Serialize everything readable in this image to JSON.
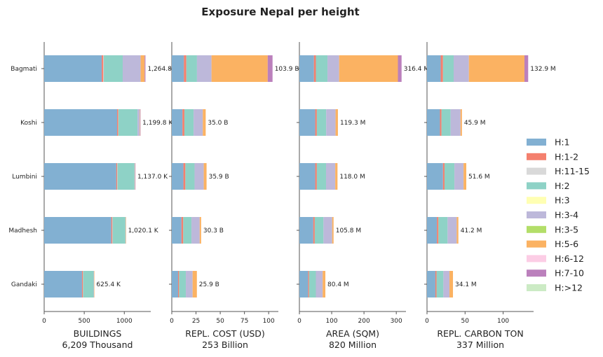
{
  "title": "Exposure Nepal per height",
  "chart_data": {
    "type": "bar",
    "orientation": "horizontal",
    "stacked": true,
    "categories": [
      "Bagmati",
      "Koshi",
      "Lumbini",
      "Madhesh",
      "Gandaki"
    ],
    "series_names": [
      "H:1",
      "H:1-2",
      "H:11-15",
      "H:2",
      "H:3",
      "H:3-4",
      "H:3-5",
      "H:5-6",
      "H:6-12",
      "H:7-10",
      "H:>12"
    ],
    "colors": [
      "#82b0d2",
      "#f4806e",
      "#d9d9d9",
      "#8ed2c6",
      "#ffffb3",
      "#bdb8da",
      "#b3de69",
      "#fbb262",
      "#fccde5",
      "#bb80bc",
      "#ccebc5"
    ],
    "legend_position": "right",
    "panels": [
      {
        "xlabel": "BUILDINGS",
        "total": "6,209 Thousand",
        "xlim": [
          0,
          1330
        ],
        "xticks": [
          0,
          500,
          1000
        ],
        "xtick_labels": [
          "0",
          "500",
          "1000"
        ],
        "data_labels": [
          "1,264.8 K",
          "1,199.8 K",
          "1,137.0 K",
          "1,020.1 K",
          "625.4 K"
        ],
        "values": [
          [
            718,
            20,
            6,
            236,
            0,
            224,
            0,
            50,
            0,
            10,
            0
          ],
          [
            910,
            14,
            3,
            238,
            0,
            28,
            0,
            5,
            0,
            2,
            0
          ],
          [
            900,
            12,
            3,
            212,
            0,
            5,
            0,
            3,
            0,
            2,
            0
          ],
          [
            838,
            13,
            3,
            160,
            0,
            4,
            0,
            2,
            0,
            0,
            0
          ],
          [
            472,
            12,
            2,
            131,
            0,
            6,
            0,
            2,
            0,
            0,
            0
          ]
        ]
      },
      {
        "xlabel": "REPL. COST (USD)",
        "total": "253 Billion",
        "xlim": [
          0,
          110
        ],
        "xticks": [
          0,
          25,
          50,
          75,
          100
        ],
        "xtick_labels": [
          "0",
          "25",
          "50",
          "75",
          "100"
        ],
        "data_labels": [
          "103.9 B",
          "35.0 B",
          "35.9 B",
          "30.3 B",
          "25.9 B"
        ],
        "values": [
          [
            12.5,
            2.5,
            0,
            11,
            0,
            15,
            0,
            58,
            0,
            5,
            0
          ],
          [
            11,
            2,
            0,
            9.5,
            0,
            9.5,
            0,
            3,
            0,
            0,
            0
          ],
          [
            12,
            2,
            0,
            9.5,
            0,
            9.5,
            0,
            2.9,
            0,
            0,
            0
          ],
          [
            10,
            1.8,
            0,
            8.5,
            0,
            8.5,
            0,
            1.5,
            0,
            0,
            0
          ],
          [
            6.5,
            1,
            0,
            7,
            0,
            7,
            0,
            4.4,
            0,
            0,
            0
          ]
        ]
      },
      {
        "xlabel": "AREA (SQM)",
        "total": "820 Million",
        "xlim": [
          0,
          330
        ],
        "xticks": [
          0,
          100,
          200,
          300
        ],
        "xtick_labels": [
          "0",
          "100",
          "200",
          "300"
        ],
        "data_labels": [
          "316.4 M",
          "119.3 M",
          "118.0 M",
          "105.8 M",
          "80.4 M"
        ],
        "values": [
          [
            45,
            6,
            0,
            36,
            0,
            36,
            0,
            182,
            0,
            11.4,
            0
          ],
          [
            49,
            5,
            0,
            29,
            0,
            29,
            0,
            7.3,
            0,
            0,
            0
          ],
          [
            49,
            5,
            0,
            28.5,
            0,
            28.5,
            0,
            7,
            0,
            0,
            0
          ],
          [
            43,
            4.5,
            0,
            27,
            0,
            27,
            0,
            4.3,
            0,
            0,
            0
          ],
          [
            27,
            3,
            0,
            21,
            0,
            21,
            0,
            8.4,
            0,
            0,
            0
          ]
        ]
      },
      {
        "xlabel": "REPL. CARBON TON",
        "total": "337 Million",
        "xlim": [
          0,
          140
        ],
        "xticks": [
          0,
          50,
          100
        ],
        "xtick_labels": [
          "0",
          "50",
          "100"
        ],
        "data_labels": [
          "132.9 M",
          "45.9 M",
          "51.6 M",
          "41.2 M",
          "34.1 M"
        ],
        "values": [
          [
            18,
            3,
            0,
            14,
            0,
            20,
            0,
            73,
            0,
            4.9,
            0
          ],
          [
            17,
            2,
            0,
            12,
            0,
            13,
            0,
            1.9,
            0,
            0,
            0
          ],
          [
            21,
            2,
            0,
            13,
            0,
            12,
            0,
            3.6,
            0,
            0,
            0
          ],
          [
            13,
            2,
            0,
            12,
            0,
            12,
            0,
            2.2,
            0,
            0,
            0
          ],
          [
            11,
            1.5,
            0,
            9,
            0,
            8,
            0,
            4.6,
            0,
            0,
            0
          ]
        ]
      }
    ]
  }
}
